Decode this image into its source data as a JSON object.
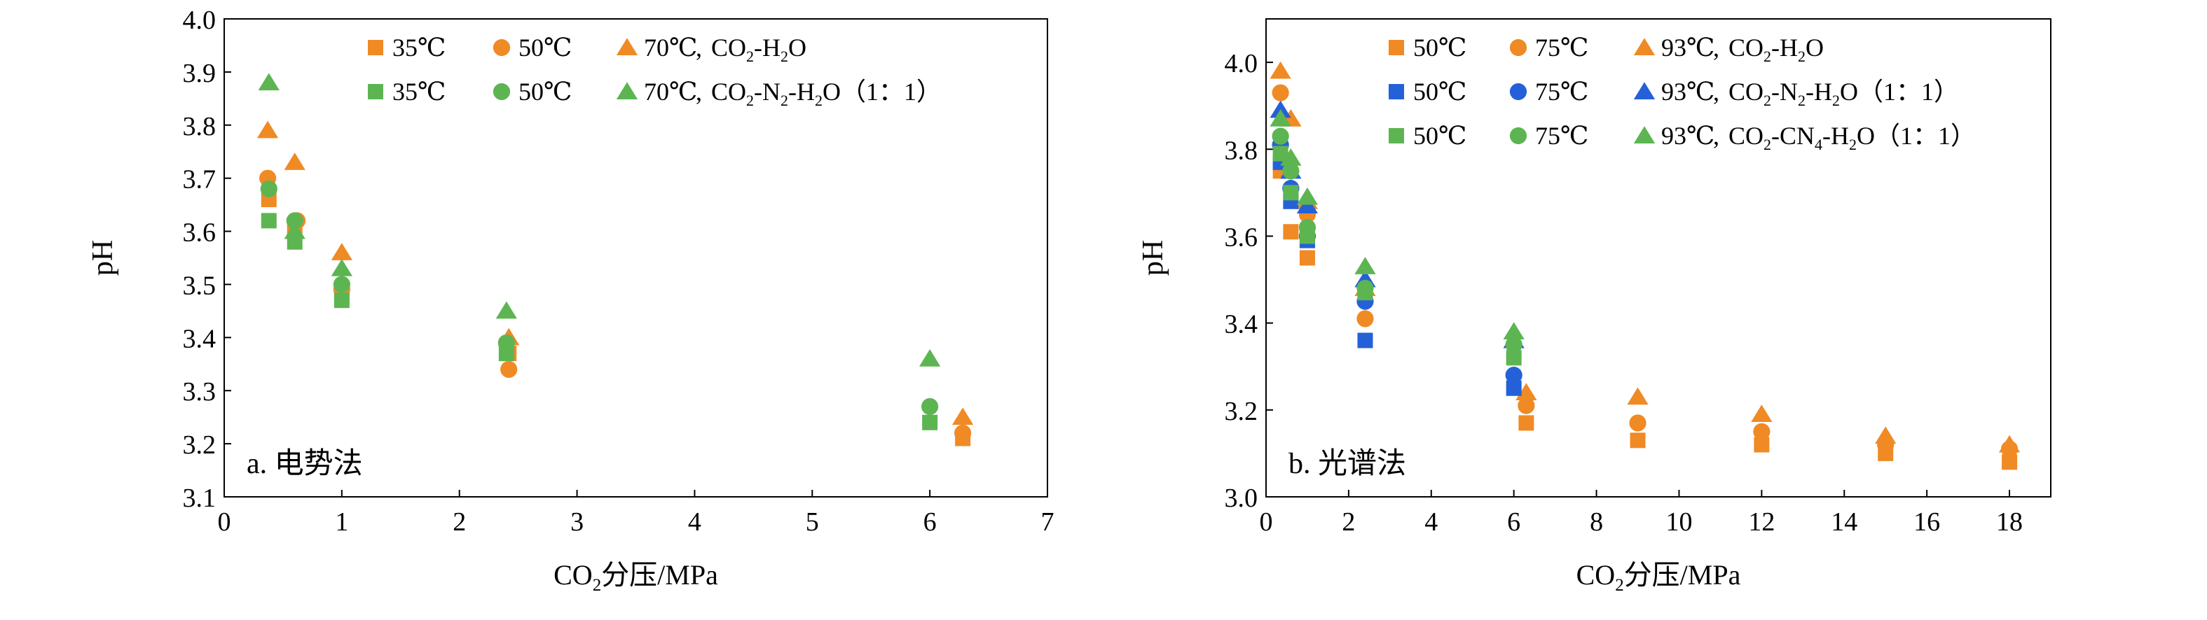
{
  "colors": {
    "orange": "#F08A24",
    "green": "#5DB552",
    "blue": "#2461D8",
    "axis": "#000000"
  },
  "chart_data": [
    {
      "type": "scatter",
      "panel_label": "a. 电势法",
      "xlabel": "CO2分压/MPa",
      "ylabel": "pH",
      "xlim": [
        0,
        7
      ],
      "ylim": [
        3.1,
        4.0
      ],
      "xticks": [
        "0",
        "1",
        "2",
        "3",
        "4",
        "5",
        "6",
        "7"
      ],
      "yticks": [
        "3.1",
        "3.2",
        "3.3",
        "3.4",
        "3.5",
        "3.6",
        "3.7",
        "3.8",
        "3.9",
        "4.0"
      ],
      "legend_position": "top",
      "legend_rows": [
        {
          "system_label": "CO2-H2O",
          "temps": [
            "35℃",
            "50℃",
            "70℃"
          ]
        },
        {
          "system_label": "CO2-N2-H2O（1：1）",
          "temps": [
            "35℃",
            "50℃",
            "70℃"
          ]
        }
      ],
      "series": [
        {
          "name": "35℃",
          "system": "CO2-H2O",
          "marker": "square",
          "color": "orange",
          "points": [
            [
              0.38,
              3.66
            ],
            [
              0.6,
              3.6
            ],
            [
              1.0,
              3.48
            ],
            [
              2.42,
              3.37
            ],
            [
              6.28,
              3.21
            ]
          ]
        },
        {
          "name": "50℃",
          "system": "CO2-H2O",
          "marker": "circle",
          "color": "orange",
          "points": [
            [
              0.37,
              3.7
            ],
            [
              0.62,
              3.62
            ],
            [
              1.0,
              3.49
            ],
            [
              2.42,
              3.34
            ],
            [
              6.28,
              3.22
            ]
          ]
        },
        {
          "name": "70℃",
          "system": "CO2-H2O",
          "marker": "triangle",
          "color": "orange",
          "points": [
            [
              0.37,
              3.79
            ],
            [
              0.6,
              3.73
            ],
            [
              1.0,
              3.56
            ],
            [
              2.42,
              3.4
            ],
            [
              6.28,
              3.25
            ]
          ]
        },
        {
          "name": "35℃",
          "system": "CO2-N2-H2O（1：1）",
          "marker": "square",
          "color": "green",
          "points": [
            [
              0.38,
              3.62
            ],
            [
              0.6,
              3.58
            ],
            [
              1.0,
              3.47
            ],
            [
              2.4,
              3.37
            ],
            [
              6.0,
              3.24
            ]
          ]
        },
        {
          "name": "50℃",
          "system": "CO2-N2-H2O（1：1）",
          "marker": "circle",
          "color": "green",
          "points": [
            [
              0.38,
              3.68
            ],
            [
              0.6,
              3.62
            ],
            [
              1.0,
              3.5
            ],
            [
              2.4,
              3.39
            ],
            [
              6.0,
              3.27
            ]
          ]
        },
        {
          "name": "70℃",
          "system": "CO2-N2-H2O（1：1）",
          "marker": "triangle",
          "color": "green",
          "points": [
            [
              0.38,
              3.88
            ],
            [
              0.6,
              3.6
            ],
            [
              1.0,
              3.53
            ],
            [
              2.4,
              3.45
            ],
            [
              6.0,
              3.36
            ]
          ]
        }
      ]
    },
    {
      "type": "scatter",
      "panel_label": "b. 光谱法",
      "xlabel": "CO2分压/MPa",
      "ylabel": "pH",
      "xlim": [
        0,
        19
      ],
      "ylim": [
        3.0,
        4.1
      ],
      "xticks": [
        "0",
        "2",
        "4",
        "6",
        "8",
        "10",
        "12",
        "14",
        "16",
        "18"
      ],
      "yticks": [
        "3.0",
        "3.2",
        "3.4",
        "3.6",
        "3.8",
        "4.0"
      ],
      "legend_position": "top",
      "legend_rows": [
        {
          "system_label": "CO2-H2O",
          "temps": [
            "50℃",
            "75℃",
            "93℃"
          ]
        },
        {
          "system_label": "CO2-N2-H2O（1：1）",
          "temps": [
            "50℃",
            "75℃",
            "93℃"
          ]
        },
        {
          "system_label": "CO2-CN4-H2O（1：1）",
          "temps": [
            "50℃",
            "75℃",
            "93℃"
          ]
        }
      ],
      "series": [
        {
          "name": "50℃",
          "system": "CO2-H2O",
          "marker": "square",
          "color": "orange",
          "points": [
            [
              0.35,
              3.75
            ],
            [
              0.6,
              3.61
            ],
            [
              1.0,
              3.55
            ],
            [
              6.3,
              3.17
            ],
            [
              9.0,
              3.13
            ],
            [
              12.0,
              3.12
            ],
            [
              15.0,
              3.1
            ],
            [
              18.0,
              3.08
            ]
          ]
        },
        {
          "name": "75℃",
          "system": "CO2-H2O",
          "marker": "circle",
          "color": "orange",
          "points": [
            [
              0.35,
              3.93
            ],
            [
              0.6,
              3.71
            ],
            [
              1.0,
              3.65
            ],
            [
              2.4,
              3.41
            ],
            [
              6.3,
              3.21
            ],
            [
              9.0,
              3.17
            ],
            [
              12.0,
              3.15
            ],
            [
              15.0,
              3.12
            ],
            [
              18.0,
              3.11
            ]
          ]
        },
        {
          "name": "93℃",
          "system": "CO2-H2O",
          "marker": "triangle",
          "color": "orange",
          "points": [
            [
              0.35,
              3.98
            ],
            [
              0.6,
              3.87
            ],
            [
              1.0,
              3.68
            ],
            [
              2.4,
              3.48
            ],
            [
              6.3,
              3.24
            ],
            [
              9.0,
              3.23
            ],
            [
              12.0,
              3.19
            ],
            [
              15.0,
              3.14
            ],
            [
              18.0,
              3.12
            ]
          ]
        },
        {
          "name": "50℃",
          "system": "CO2-N2-H2O（1：1）",
          "marker": "square",
          "color": "blue",
          "points": [
            [
              0.35,
              3.77
            ],
            [
              0.6,
              3.68
            ],
            [
              1.0,
              3.59
            ],
            [
              2.4,
              3.36
            ],
            [
              6.0,
              3.25
            ]
          ]
        },
        {
          "name": "75℃",
          "system": "CO2-N2-H2O（1：1）",
          "marker": "circle",
          "color": "blue",
          "points": [
            [
              0.35,
              3.81
            ],
            [
              0.6,
              3.71
            ],
            [
              1.0,
              3.6
            ],
            [
              2.4,
              3.45
            ],
            [
              6.0,
              3.28
            ]
          ]
        },
        {
          "name": "93℃",
          "system": "CO2-N2-H2O（1：1）",
          "marker": "triangle",
          "color": "blue",
          "points": [
            [
              0.35,
              3.89
            ],
            [
              0.6,
              3.75
            ],
            [
              1.0,
              3.67
            ],
            [
              2.4,
              3.5
            ],
            [
              6.0,
              3.36
            ]
          ]
        },
        {
          "name": "50℃",
          "system": "CO2-CN4-H2O（1：1）",
          "marker": "square",
          "color": "green",
          "points": [
            [
              0.35,
              3.79
            ],
            [
              0.6,
              3.7
            ],
            [
              1.0,
              3.6
            ],
            [
              2.4,
              3.47
            ],
            [
              6.0,
              3.32
            ]
          ]
        },
        {
          "name": "75℃",
          "system": "CO2-CN4-H2O（1：1）",
          "marker": "circle",
          "color": "green",
          "points": [
            [
              0.35,
              3.83
            ],
            [
              0.6,
              3.75
            ],
            [
              1.0,
              3.62
            ],
            [
              2.4,
              3.48
            ],
            [
              6.0,
              3.35
            ]
          ]
        },
        {
          "name": "93℃",
          "system": "CO2-CN4-H2O（1：1）",
          "marker": "triangle",
          "color": "green",
          "points": [
            [
              0.35,
              3.87
            ],
            [
              0.6,
              3.78
            ],
            [
              1.0,
              3.69
            ],
            [
              2.4,
              3.53
            ],
            [
              6.0,
              3.38
            ]
          ]
        }
      ]
    }
  ]
}
